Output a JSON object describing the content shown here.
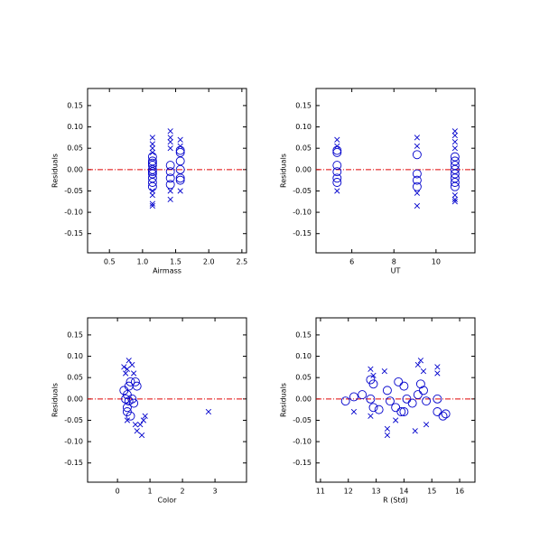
{
  "chart_data": [
    {
      "type": "scatter",
      "xlabel": "Airmass",
      "ylabel": "Residuals",
      "xlim": [
        0.17,
        2.57
      ],
      "ylim": [
        -0.195,
        0.19
      ],
      "xticks": [
        0.5,
        {
          "value": 1.0,
          "label": "1.0"
        },
        1.5,
        {
          "value": 2.0,
          "label": "2.0"
        },
        2.5
      ],
      "yticks": [
        0.15,
        {
          "value": 0.1,
          "label": "0.10"
        },
        0.05,
        {
          "value": 0,
          "label": "0.00"
        },
        -0.05,
        {
          "value": -0.1,
          "label": "-0.10"
        },
        -0.15
      ],
      "reference_line": {
        "value": 0,
        "color": "#e00000"
      },
      "series": [
        {
          "marker": "o",
          "color": "#0000cc",
          "x": [
            1.15,
            1.15,
            1.15,
            1.15,
            1.15,
            1.15,
            1.15,
            1.15,
            1.15,
            1.15,
            1.42,
            1.42,
            1.42,
            1.42,
            1.57,
            1.57,
            1.57,
            1.57,
            1.57,
            1.57
          ],
          "y": [
            0.03,
            0.02,
            0.01,
            0.0,
            -0.005,
            -0.01,
            -0.02,
            -0.03,
            0.015,
            -0.04,
            0.01,
            -0.005,
            -0.02,
            -0.035,
            0.04,
            0.045,
            0.02,
            0.0,
            -0.02,
            -0.025
          ]
        },
        {
          "marker": "x",
          "color": "#0000cc",
          "x": [
            1.15,
            1.15,
            1.15,
            1.15,
            1.15,
            1.15,
            1.15,
            1.15,
            1.42,
            1.42,
            1.42,
            1.42,
            1.42,
            1.42,
            1.57,
            1.57,
            1.57
          ],
          "y": [
            0.075,
            0.06,
            0.05,
            0.04,
            -0.05,
            -0.06,
            -0.08,
            -0.085,
            0.09,
            0.075,
            0.065,
            0.05,
            -0.05,
            -0.07,
            0.07,
            0.055,
            -0.05
          ]
        }
      ]
    },
    {
      "type": "scatter",
      "xlabel": "UT",
      "ylabel": "Residuals",
      "xlim": [
        4.3,
        11.85
      ],
      "ylim": [
        -0.195,
        0.19
      ],
      "xticks": [
        6,
        8,
        10
      ],
      "yticks": [
        0.15,
        {
          "value": 0.1,
          "label": "0.10"
        },
        0.05,
        {
          "value": 0,
          "label": "0.00"
        },
        -0.05,
        {
          "value": -0.1,
          "label": "-0.10"
        },
        -0.15
      ],
      "reference_line": {
        "value": 0,
        "color": "#e00000"
      },
      "series": [
        {
          "marker": "o",
          "color": "#0000cc",
          "x": [
            5.3,
            5.3,
            5.3,
            5.3,
            5.3,
            5.3,
            9.1,
            9.1,
            9.1,
            9.1,
            10.9,
            10.9,
            10.9,
            10.9,
            10.9,
            10.9,
            10.9,
            10.9
          ],
          "y": [
            0.045,
            0.04,
            0.01,
            -0.005,
            -0.02,
            -0.03,
            0.035,
            -0.01,
            -0.025,
            -0.04,
            0.03,
            0.02,
            0.01,
            0.0,
            -0.01,
            -0.02,
            -0.03,
            -0.04
          ]
        },
        {
          "marker": "x",
          "color": "#0000cc",
          "x": [
            5.3,
            5.3,
            5.3,
            9.1,
            9.1,
            9.1,
            9.1,
            10.9,
            10.9,
            10.9,
            10.9,
            10.9,
            10.9,
            10.9
          ],
          "y": [
            0.07,
            0.055,
            -0.05,
            0.075,
            0.055,
            -0.055,
            -0.085,
            0.09,
            0.08,
            0.065,
            0.05,
            -0.06,
            -0.07,
            -0.075
          ]
        }
      ]
    },
    {
      "type": "scatter",
      "xlabel": "Color",
      "ylabel": "Residuals",
      "xlim": [
        -0.92,
        3.97
      ],
      "ylim": [
        -0.195,
        0.19
      ],
      "xticks": [
        0,
        1,
        2,
        3
      ],
      "yticks": [
        0.15,
        {
          "value": 0.1,
          "label": "0.10"
        },
        0.05,
        {
          "value": 0,
          "label": "0.00"
        },
        -0.05,
        {
          "value": -0.1,
          "label": "-0.10"
        },
        -0.15
      ],
      "reference_line": {
        "value": 0,
        "color": "#e00000"
      },
      "series": [
        {
          "marker": "o",
          "color": "#0000cc",
          "x": [
            0.2,
            0.25,
            0.3,
            0.3,
            0.35,
            0.4,
            0.45,
            0.5,
            0.55,
            0.6,
            0.3,
            0.4,
            0.35
          ],
          "y": [
            0.02,
            0.0,
            -0.02,
            -0.03,
            0.03,
            0.04,
            0.0,
            -0.01,
            0.04,
            0.03,
            0.01,
            -0.04,
            -0.005
          ]
        },
        {
          "marker": "x",
          "color": "#0000cc",
          "x": [
            0.2,
            0.25,
            0.3,
            0.35,
            0.45,
            0.5,
            0.55,
            0.6,
            0.7,
            0.75,
            0.8,
            0.85,
            2.8,
            0.3
          ],
          "y": [
            0.075,
            0.06,
            0.07,
            0.09,
            0.08,
            0.06,
            -0.06,
            -0.075,
            -0.06,
            -0.085,
            -0.05,
            -0.04,
            -0.03,
            -0.05
          ]
        }
      ]
    },
    {
      "type": "scatter",
      "xlabel": "R (Std)",
      "ylabel": "Residuals",
      "xlim": [
        10.84,
        16.55
      ],
      "ylim": [
        -0.195,
        0.19
      ],
      "xticks": [
        11,
        12,
        13,
        14,
        15,
        16
      ],
      "yticks": [
        0.15,
        {
          "value": 0.1,
          "label": "0.10"
        },
        0.05,
        {
          "value": 0,
          "label": "0.00"
        },
        -0.05,
        {
          "value": -0.1,
          "label": "-0.10"
        },
        -0.15
      ],
      "reference_line": {
        "value": 0,
        "color": "#e00000"
      },
      "series": [
        {
          "marker": "o",
          "color": "#0000cc",
          "x": [
            11.9,
            12.2,
            12.5,
            12.8,
            12.9,
            12.9,
            13.1,
            13.4,
            13.5,
            13.7,
            13.8,
            13.9,
            14.0,
            14.1,
            14.3,
            14.5,
            14.6,
            14.7,
            14.8,
            15.2,
            15.2,
            15.4,
            15.5,
            14.0,
            12.8
          ],
          "y": [
            -0.005,
            0.005,
            0.01,
            0.045,
            0.035,
            -0.02,
            -0.025,
            0.02,
            -0.005,
            -0.02,
            0.04,
            -0.03,
            0.03,
            0.0,
            -0.01,
            0.01,
            0.035,
            0.02,
            -0.005,
            0.0,
            -0.03,
            -0.04,
            -0.035,
            -0.03,
            0.0
          ]
        },
        {
          "marker": "x",
          "color": "#0000cc",
          "x": [
            12.2,
            12.8,
            12.8,
            12.9,
            13.3,
            13.4,
            13.7,
            14.4,
            14.5,
            14.6,
            14.7,
            14.8,
            15.2,
            15.2,
            13.4
          ],
          "y": [
            -0.03,
            0.07,
            -0.04,
            0.055,
            0.065,
            -0.085,
            -0.05,
            -0.075,
            0.08,
            0.09,
            0.065,
            -0.06,
            0.075,
            0.06,
            -0.07
          ]
        }
      ]
    }
  ]
}
